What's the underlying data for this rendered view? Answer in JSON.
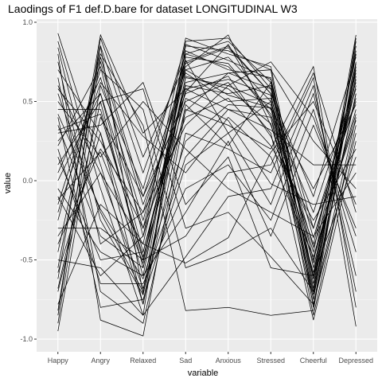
{
  "chart_data": {
    "type": "line",
    "title": "Laodings of F1 def.D.bare for dataset LONGITUDINAL W3",
    "xlabel": "variable",
    "ylabel": "value",
    "categories": [
      "Happy",
      "Angry",
      "Relaxed",
      "Sad",
      "Anxious",
      "Stressed",
      "Cheerful",
      "Depressed"
    ],
    "ylim": [
      -1.08,
      1.02
    ],
    "yticks": [
      -1.0,
      -0.5,
      0.0,
      0.5,
      1.0
    ],
    "ytick_labels": [
      "-1.0",
      "-0.5",
      "0.0",
      "0.5",
      "1.0"
    ],
    "grid": true,
    "legend": "none",
    "colors": {
      "panel": "#ebebeb",
      "grid_major": "#ffffff",
      "grid_minor": "#f5f5f5",
      "line": "#000000"
    },
    "series": [
      [
        0.93,
        0.1,
        -0.78,
        0.8,
        0.88,
        0.62,
        -0.75,
        0.9
      ],
      [
        0.88,
        -0.05,
        -0.85,
        0.85,
        0.82,
        0.7,
        -0.8,
        0.8
      ],
      [
        0.7,
        0.3,
        -0.6,
        0.75,
        0.85,
        0.55,
        -0.7,
        0.85
      ],
      [
        0.55,
        -0.2,
        -0.7,
        0.88,
        0.9,
        0.58,
        -0.65,
        0.75
      ],
      [
        0.45,
        0.45,
        -0.5,
        0.7,
        0.78,
        0.5,
        -0.6,
        0.7
      ],
      [
        0.6,
        0.05,
        -0.4,
        0.82,
        0.7,
        0.65,
        -0.55,
        0.6
      ],
      [
        0.35,
        -0.35,
        -0.55,
        0.65,
        0.6,
        0.48,
        -0.72,
        0.55
      ],
      [
        0.25,
        0.55,
        -0.3,
        0.78,
        0.74,
        0.42,
        -0.45,
        0.8
      ],
      [
        0.15,
        -0.5,
        -0.45,
        0.6,
        0.55,
        0.6,
        -0.5,
        0.45
      ],
      [
        0.05,
        0.65,
        -0.25,
        0.72,
        0.92,
        0.35,
        -0.4,
        0.68
      ],
      [
        -0.1,
        -0.6,
        -0.35,
        0.9,
        0.8,
        0.72,
        -0.62,
        0.92
      ],
      [
        -0.25,
        0.75,
        -0.15,
        0.55,
        0.66,
        0.28,
        -0.3,
        0.5
      ],
      [
        -0.4,
        0.2,
        -0.2,
        0.68,
        0.5,
        0.52,
        -0.85,
        0.35
      ],
      [
        -0.55,
        0.85,
        0.05,
        0.8,
        0.72,
        0.45,
        -0.2,
        0.62
      ],
      [
        -0.7,
        0.4,
        -0.1,
        0.5,
        0.62,
        0.3,
        -0.88,
        0.25
      ],
      [
        -0.85,
        0.9,
        0.15,
        0.74,
        0.84,
        0.55,
        -0.1,
        0.78
      ],
      [
        -0.95,
        0.6,
        -0.05,
        0.86,
        0.76,
        0.64,
        -0.68,
        0.88
      ],
      [
        -0.62,
        0.92,
        0.3,
        0.58,
        0.45,
        0.4,
        -0.78,
        0.4
      ],
      [
        0.8,
        -0.88,
        -0.98,
        0.45,
        0.35,
        0.2,
        0.72,
        -0.8
      ],
      [
        0.65,
        -0.7,
        -0.9,
        0.3,
        0.2,
        0.05,
        0.65,
        -0.92
      ],
      [
        0.4,
        -0.8,
        -0.75,
        0.1,
        0.3,
        -0.15,
        0.55,
        -0.6
      ],
      [
        0.2,
        -0.65,
        -0.65,
        -0.05,
        0.1,
        -0.25,
        0.45,
        -0.45
      ],
      [
        -0.05,
        -0.45,
        -0.6,
        -0.2,
        0.25,
        -0.35,
        0.35,
        -0.3
      ],
      [
        -0.3,
        -0.3,
        -0.5,
        -0.35,
        0.05,
        0.1,
        0.68,
        -0.2
      ],
      [
        -0.5,
        -0.55,
        -0.85,
        -0.48,
        -0.1,
        -0.05,
        0.6,
        -0.7
      ],
      [
        -0.78,
        -0.15,
        -0.4,
        -0.52,
        -0.36,
        0.18,
        0.5,
        -0.15
      ],
      [
        0.1,
        0.5,
        0.58,
        -0.3,
        -0.2,
        -0.48,
        -0.78,
        0.3
      ],
      [
        -0.15,
        0.7,
        0.45,
        -0.55,
        -0.45,
        -0.3,
        -0.7,
        0.55
      ],
      [
        0.3,
        0.35,
        0.62,
        -0.15,
        0.15,
        -0.55,
        -0.6,
        0.15
      ],
      [
        -0.45,
        0.8,
        0.35,
        -0.82,
        -0.8,
        -0.85,
        -0.82,
        0.72
      ],
      [
        0.5,
        0.15,
        0.5,
        0.2,
        -0.05,
        -0.2,
        -0.35,
        0.05
      ],
      [
        -0.2,
        0.62,
        0.28,
        0.05,
        0.4,
        0.15,
        -0.48,
        0.42
      ],
      [
        0.58,
        0.25,
        -0.3,
        0.4,
        0.52,
        0.22,
        -0.25,
        0.2
      ],
      [
        -0.68,
        0.5,
        -0.55,
        0.62,
        0.68,
        0.7,
        0.25,
        -0.05
      ],
      [
        0.75,
        -0.4,
        -0.2,
        0.35,
        0.6,
        0.75,
        0.4,
        -0.35
      ],
      [
        -0.35,
        0.05,
        -0.68,
        0.15,
        0.45,
        0.32,
        0.1,
        0.1
      ],
      [
        0.0,
        0.55,
        -0.45,
        0.52,
        0.38,
        -0.02,
        -0.15,
        -0.1
      ],
      [
        -0.82,
        0.85,
        -0.72,
        0.66,
        0.58,
        0.36,
        -0.58,
        0.66
      ],
      [
        0.42,
        -0.18,
        -0.62,
        0.25,
        0.48,
        0.46,
        -0.05,
        0.48
      ],
      [
        -0.58,
        0.3,
        -0.78,
        0.48,
        0.22,
        0.62,
        -0.3,
        0.58
      ],
      [
        0.22,
        0.72,
        -0.35,
        0.56,
        0.86,
        0.4,
        -0.52,
        0.82
      ],
      [
        -0.12,
        0.18,
        -0.52,
        0.76,
        0.3,
        0.5,
        -0.42,
        0.38
      ],
      [
        0.84,
        -0.25,
        -0.72,
        0.58,
        0.64,
        0.54,
        -0.62,
        0.64
      ],
      [
        -0.9,
        0.78,
        -0.1,
        0.7,
        0.54,
        0.46,
        -0.75,
        0.74
      ],
      [
        0.32,
        0.42,
        -0.48,
        0.44,
        0.68,
        0.58,
        -0.36,
        0.52
      ]
    ]
  }
}
